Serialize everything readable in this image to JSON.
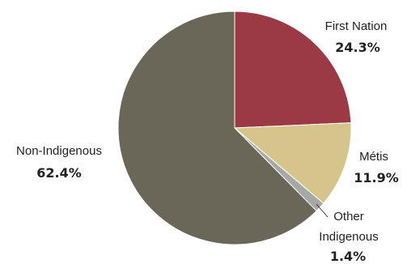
{
  "chart_data": {
    "type": "pie",
    "title": "",
    "slices": [
      {
        "label": "First Nation",
        "value": 24.3,
        "value_label": "24.3%",
        "color": "#9b3a45"
      },
      {
        "label": "Métis",
        "value": 11.9,
        "value_label": "11.9%",
        "color": "#d6c58a"
      },
      {
        "label": "Other Indigenous",
        "label_lines": [
          "Other",
          "Indigenous"
        ],
        "value": 1.4,
        "value_label": "1.4%",
        "color": "#a7a7a6"
      },
      {
        "label": "Non-Indigenous",
        "value": 62.4,
        "value_label": "62.4%",
        "color": "#6a6658"
      }
    ],
    "start_angle": "12 o'clock",
    "direction": "clockwise",
    "legend": "none"
  }
}
